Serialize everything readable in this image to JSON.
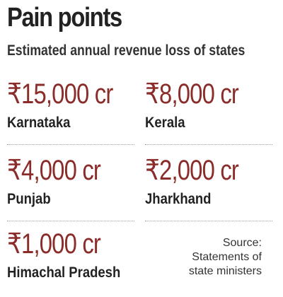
{
  "chart_data": {
    "type": "table",
    "title": "Pain points",
    "subtitle": "Estimated annual revenue loss of states",
    "currency_symbol": "₹",
    "unit": "cr",
    "items": [
      {
        "state": "Karnataka",
        "value": 15000,
        "label": "₹15,000 cr"
      },
      {
        "state": "Kerala",
        "value": 8000,
        "label": "₹8,000 cr"
      },
      {
        "state": "Punjab",
        "value": 4000,
        "label": "₹4,000 cr"
      },
      {
        "state": "Jharkhand",
        "value": 2000,
        "label": "₹2,000 cr"
      },
      {
        "state": "Himachal Pradesh",
        "value": 1000,
        "label": "₹1,000 cr"
      }
    ],
    "source_lines": [
      "Source:",
      "Statements of",
      "state ministers"
    ],
    "colors": {
      "value": "#8a2d2a",
      "text": "#222222",
      "divider": "#9a9a9a"
    }
  }
}
